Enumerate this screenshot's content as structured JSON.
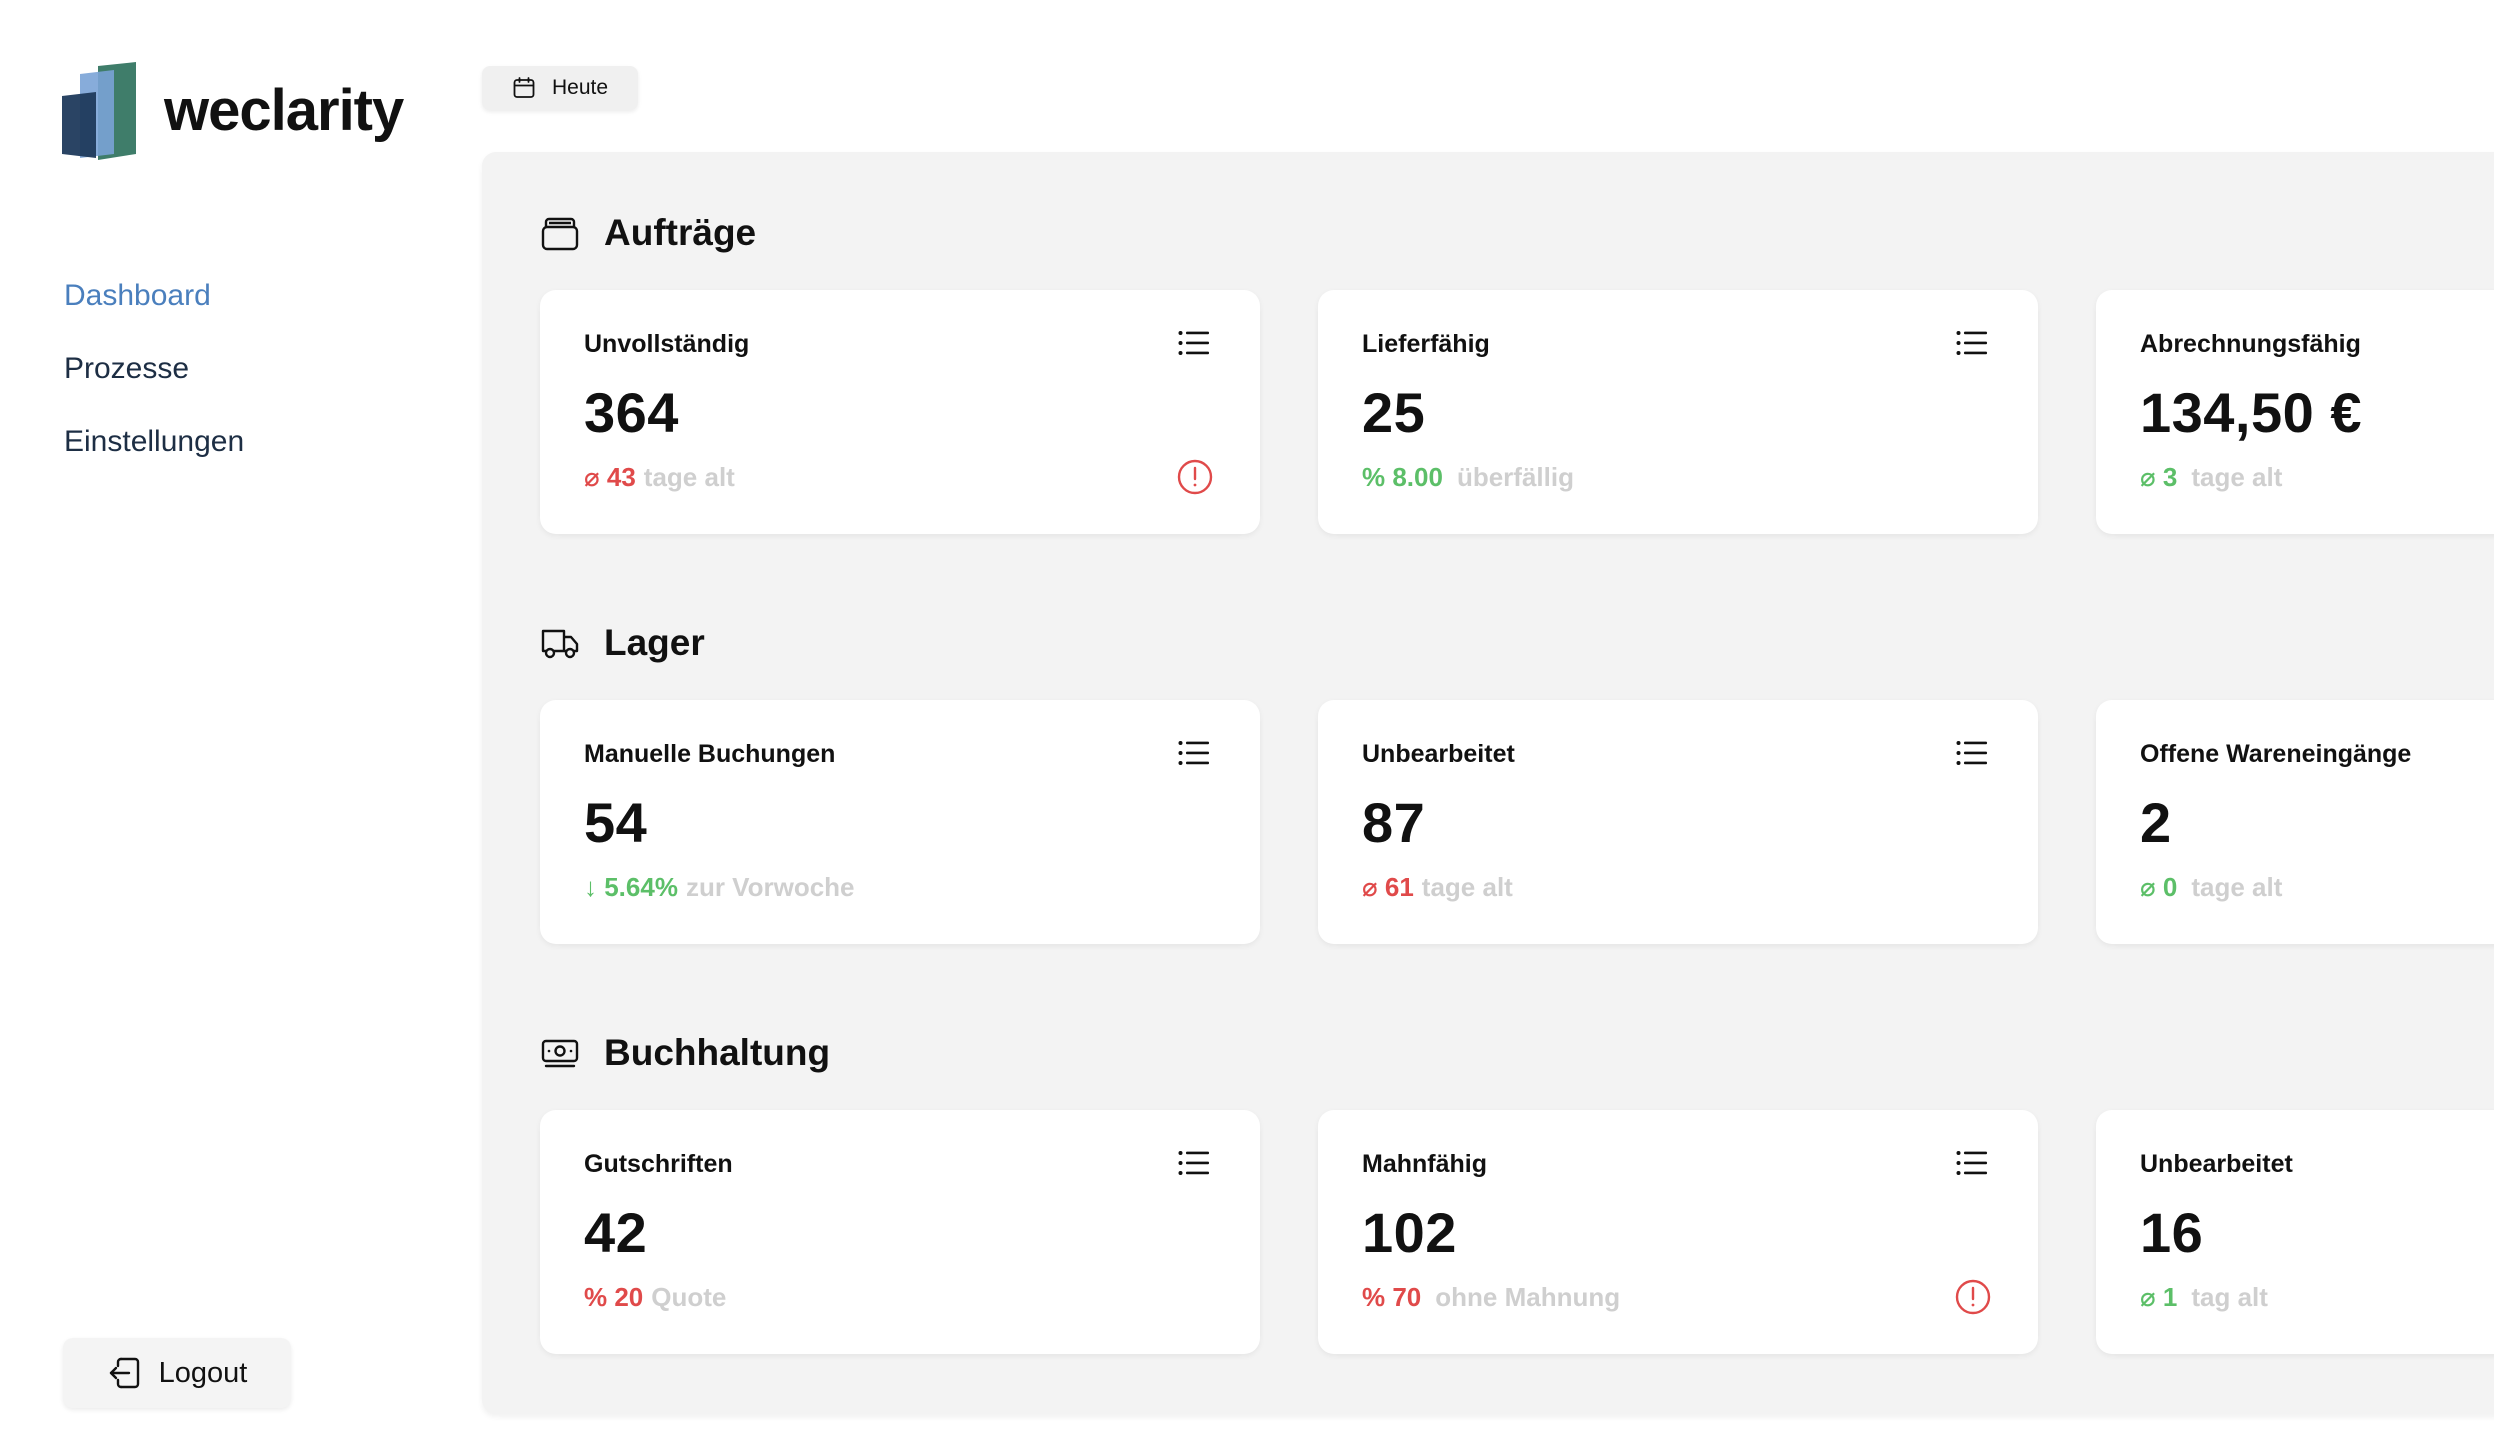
{
  "brand": {
    "name": "weclarity"
  },
  "nav": {
    "items": [
      {
        "label": "Dashboard",
        "active": true
      },
      {
        "label": "Prozesse",
        "active": false
      },
      {
        "label": "Einstellungen",
        "active": false
      }
    ]
  },
  "logout_label": "Logout",
  "date_filter": {
    "label": "Heute"
  },
  "colors": {
    "accent": "#4a7fbd",
    "negative": "#e04a4a",
    "positive": "#5cbf68",
    "panel": "#f3f3f3"
  },
  "sections": [
    {
      "title": "Aufträge",
      "icon": "archive-icon",
      "cards": [
        {
          "label": "Unvollständig",
          "value": "364",
          "sub_prefix": "⌀ 43",
          "sub_text": "tage alt",
          "tone": "red",
          "alert": true
        },
        {
          "label": "Lieferfähig",
          "value": "25",
          "sub_prefix": "% 8.00",
          "sub_text": "überfällig",
          "tone": "green",
          "alert": false
        },
        {
          "label": "Abrechnungsfähig",
          "value": "134,50 €",
          "sub_prefix": "⌀ 3",
          "sub_text": "tage alt",
          "tone": "green",
          "alert": false
        }
      ]
    },
    {
      "title": "Lager",
      "icon": "truck-icon",
      "cards": [
        {
          "label": "Manuelle Buchungen",
          "value": "54",
          "sub_prefix": "↓ 5.64%",
          "sub_text": "zur Vorwoche",
          "tone": "green",
          "alert": false
        },
        {
          "label": "Unbearbeitet",
          "value": "87",
          "sub_prefix": "⌀ 61",
          "sub_text": "tage alt",
          "tone": "red",
          "alert": false
        },
        {
          "label": "Offene Wareneingänge",
          "value": "2",
          "sub_prefix": "⌀ 0",
          "sub_text": "tage alt",
          "tone": "green",
          "alert": false
        }
      ]
    },
    {
      "title": "Buchhaltung",
      "icon": "banknote-icon",
      "cards": [
        {
          "label": "Gutschriften",
          "value": "42",
          "sub_prefix": "% 20",
          "sub_text": "Quote",
          "tone": "red",
          "alert": false
        },
        {
          "label": "Mahnfähig",
          "value": "102",
          "sub_prefix": "% 70",
          "sub_text": "ohne Mahnung",
          "tone": "red",
          "alert": true
        },
        {
          "label": "Unbearbeitet",
          "value": "16",
          "sub_prefix": "⌀ 1",
          "sub_text": "tag alt",
          "tone": "green",
          "alert": false
        }
      ]
    }
  ]
}
